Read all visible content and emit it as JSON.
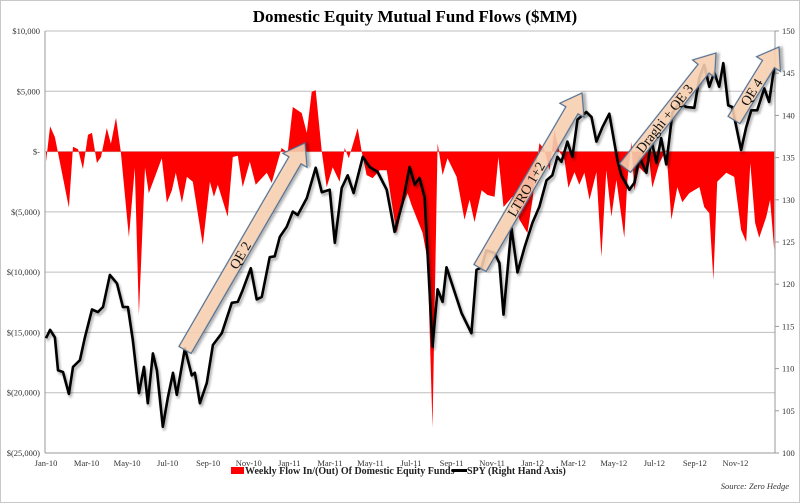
{
  "chart_data": {
    "type": "area+line",
    "title": "Domestic Equity Mutual Fund Flows ($MM)",
    "source": "Source: Zero Hedge",
    "x_unit": "months since Jan-10",
    "xlim": [
      0,
      36
    ],
    "x_ticks": [
      {
        "m": 0,
        "label": "Jan-10"
      },
      {
        "m": 2,
        "label": "Mar-10"
      },
      {
        "m": 4,
        "label": "May-10"
      },
      {
        "m": 6,
        "label": "Jul-10"
      },
      {
        "m": 8,
        "label": "Sep-10"
      },
      {
        "m": 10,
        "label": "Nov-10"
      },
      {
        "m": 12,
        "label": "Jan-11"
      },
      {
        "m": 14,
        "label": "Mar-11"
      },
      {
        "m": 16,
        "label": "May-11"
      },
      {
        "m": 18,
        "label": "Jul-11"
      },
      {
        "m": 20,
        "label": "Sep-11"
      },
      {
        "m": 22,
        "label": "Nov-11"
      },
      {
        "m": 24,
        "label": "Jan-12"
      },
      {
        "m": 26,
        "label": "Mar-12"
      },
      {
        "m": 28,
        "label": "May-12"
      },
      {
        "m": 30,
        "label": "Jul-12"
      },
      {
        "m": 32,
        "label": "Sep-12"
      },
      {
        "m": 34,
        "label": "Nov-12"
      }
    ],
    "left_axis": {
      "ylim": [
        -25000,
        10000
      ],
      "ticks": [
        {
          "v": 10000,
          "label": "$10,000"
        },
        {
          "v": 5000,
          "label": "$5,000"
        },
        {
          "v": 0,
          "label": "$-"
        },
        {
          "v": -5000,
          "label": "$(5,000)"
        },
        {
          "v": -10000,
          "label": "$(10,000)"
        },
        {
          "v": -15000,
          "label": "$(15,000)"
        },
        {
          "v": -20000,
          "label": "$(20,000)"
        },
        {
          "v": -25000,
          "label": "$(25,000)"
        }
      ],
      "grid": true
    },
    "right_axis": {
      "ylim": [
        100,
        150
      ],
      "ticks": [
        {
          "v": 100,
          "label": "100"
        },
        {
          "v": 105,
          "label": "105"
        },
        {
          "v": 110,
          "label": "110"
        },
        {
          "v": 115,
          "label": "115"
        },
        {
          "v": 120,
          "label": "120"
        },
        {
          "v": 125,
          "label": "125"
        },
        {
          "v": 130,
          "label": "130"
        },
        {
          "v": 135,
          "label": "135"
        },
        {
          "v": 140,
          "label": "140"
        },
        {
          "v": 145,
          "label": "145"
        },
        {
          "v": 150,
          "label": "150"
        }
      ]
    },
    "series": [
      {
        "name": "Weekly Flow In/(Out) Of Domestic Equity Funds",
        "type": "area",
        "axis": "left",
        "color": "#ff0000",
        "points": [
          [
            0.05,
            -850
          ],
          [
            0.25,
            2100
          ],
          [
            0.49,
            1200
          ],
          [
            1.18,
            -4650
          ],
          [
            1.38,
            400
          ],
          [
            1.63,
            200
          ],
          [
            1.87,
            -1450
          ],
          [
            2.12,
            1400
          ],
          [
            2.32,
            1550
          ],
          [
            2.56,
            -950
          ],
          [
            2.76,
            -450
          ],
          [
            3.05,
            1950
          ],
          [
            3.25,
            650
          ],
          [
            3.5,
            2800
          ],
          [
            3.74,
            0
          ],
          [
            4.14,
            -7100
          ],
          [
            4.43,
            -1350
          ],
          [
            4.63,
            -13550
          ],
          [
            4.93,
            -1350
          ],
          [
            5.12,
            -3450
          ],
          [
            5.42,
            -2100
          ],
          [
            5.76,
            -550
          ],
          [
            6.01,
            -4250
          ],
          [
            6.26,
            -3200
          ],
          [
            6.45,
            -1750
          ],
          [
            6.75,
            -4250
          ],
          [
            7.0,
            -2100
          ],
          [
            7.29,
            -2500
          ],
          [
            7.78,
            -7750
          ],
          [
            8.13,
            -2500
          ],
          [
            8.33,
            -3750
          ],
          [
            8.52,
            -2750
          ],
          [
            9.01,
            -5400
          ],
          [
            9.26,
            -450
          ],
          [
            9.51,
            -350
          ],
          [
            9.75,
            -2950
          ],
          [
            10.1,
            -850
          ],
          [
            10.39,
            -2750
          ],
          [
            10.94,
            -1750
          ],
          [
            11.18,
            -2600
          ],
          [
            11.67,
            300
          ],
          [
            11.97,
            -100
          ],
          [
            12.22,
            3700
          ],
          [
            12.66,
            3200
          ],
          [
            12.91,
            1550
          ],
          [
            13.15,
            4950
          ],
          [
            13.35,
            5100
          ],
          [
            13.65,
            0
          ],
          [
            13.89,
            -2950
          ],
          [
            14.19,
            -1300
          ],
          [
            14.53,
            -2500
          ],
          [
            14.78,
            300
          ],
          [
            14.98,
            -550
          ],
          [
            15.42,
            1950
          ],
          [
            15.62,
            0
          ],
          [
            15.86,
            -1950
          ],
          [
            16.16,
            -2200
          ],
          [
            16.5,
            -1550
          ],
          [
            16.85,
            -1550
          ],
          [
            17.34,
            -6750
          ],
          [
            17.64,
            -4450
          ],
          [
            17.88,
            -3450
          ],
          [
            18.08,
            -4450
          ],
          [
            18.62,
            -6750
          ],
          [
            18.87,
            -9000
          ],
          [
            19.11,
            -22900
          ],
          [
            19.36,
            700
          ],
          [
            19.61,
            -1950
          ],
          [
            19.85,
            -550
          ],
          [
            20.3,
            -2100
          ],
          [
            20.69,
            -5650
          ],
          [
            20.94,
            -4000
          ],
          [
            21.18,
            -5850
          ],
          [
            21.53,
            -3200
          ],
          [
            21.82,
            -3600
          ],
          [
            22.17,
            -3750
          ],
          [
            22.36,
            -450
          ],
          [
            22.61,
            -4600
          ],
          [
            23.05,
            -3750
          ],
          [
            23.4,
            -5650
          ],
          [
            23.79,
            -6750
          ],
          [
            24.04,
            -4000
          ],
          [
            24.38,
            700
          ],
          [
            24.63,
            150
          ],
          [
            24.88,
            -1550
          ],
          [
            25.12,
            1800
          ],
          [
            25.37,
            0
          ],
          [
            25.62,
            -700
          ],
          [
            25.81,
            -3000
          ],
          [
            26.11,
            -1700
          ],
          [
            26.35,
            -2750
          ],
          [
            26.6,
            -1750
          ],
          [
            26.85,
            -4000
          ],
          [
            27.19,
            -1700
          ],
          [
            27.44,
            -8750
          ],
          [
            27.68,
            -1550
          ],
          [
            27.93,
            -5400
          ],
          [
            28.18,
            -2350
          ],
          [
            28.57,
            -7150
          ],
          [
            28.72,
            -2350
          ],
          [
            28.92,
            800
          ],
          [
            29.06,
            -3200
          ],
          [
            29.31,
            -1300
          ],
          [
            29.56,
            -1750
          ],
          [
            29.8,
            -700
          ],
          [
            29.95,
            -3000
          ],
          [
            30.3,
            -950
          ],
          [
            30.64,
            150
          ],
          [
            30.89,
            -5650
          ],
          [
            31.18,
            -2950
          ],
          [
            31.43,
            -4200
          ],
          [
            31.77,
            -3450
          ],
          [
            32.27,
            -2950
          ],
          [
            32.51,
            -4600
          ],
          [
            32.76,
            -5100
          ],
          [
            32.96,
            -10650
          ],
          [
            33.15,
            -2500
          ],
          [
            33.6,
            -1750
          ],
          [
            33.99,
            -2100
          ],
          [
            34.33,
            -6500
          ],
          [
            34.58,
            -7500
          ],
          [
            34.78,
            -950
          ],
          [
            35.02,
            -5900
          ],
          [
            35.22,
            -7150
          ],
          [
            35.57,
            -5400
          ],
          [
            35.76,
            -4000
          ],
          [
            35.96,
            -8150
          ]
        ]
      },
      {
        "name": "SPY (Right Hand Axis)",
        "type": "line",
        "axis": "right",
        "color": "#000000",
        "points": [
          [
            0.05,
            113.6
          ],
          [
            0.25,
            114.6
          ],
          [
            0.49,
            113.7
          ],
          [
            0.64,
            109.8
          ],
          [
            0.89,
            109.6
          ],
          [
            1.18,
            107.0
          ],
          [
            1.38,
            110.2
          ],
          [
            1.72,
            111.0
          ],
          [
            1.97,
            113.7
          ],
          [
            2.32,
            117.0
          ],
          [
            2.61,
            116.7
          ],
          [
            2.86,
            117.3
          ],
          [
            3.2,
            121.1
          ],
          [
            3.55,
            120.1
          ],
          [
            3.84,
            117.3
          ],
          [
            4.09,
            117.3
          ],
          [
            4.33,
            113.4
          ],
          [
            4.63,
            107.1
          ],
          [
            4.88,
            110.2
          ],
          [
            5.07,
            105.9
          ],
          [
            5.32,
            111.8
          ],
          [
            5.52,
            109.8
          ],
          [
            5.81,
            103.1
          ],
          [
            6.06,
            106.6
          ],
          [
            6.31,
            109.5
          ],
          [
            6.5,
            106.9
          ],
          [
            6.9,
            112.4
          ],
          [
            7.24,
            109.2
          ],
          [
            7.39,
            109.5
          ],
          [
            7.64,
            105.9
          ],
          [
            7.98,
            108.3
          ],
          [
            8.28,
            112.8
          ],
          [
            8.72,
            114.2
          ],
          [
            9.21,
            117.8
          ],
          [
            9.51,
            117.9
          ],
          [
            9.75,
            119.3
          ],
          [
            10.15,
            121.9
          ],
          [
            10.44,
            118.2
          ],
          [
            10.69,
            118.5
          ],
          [
            11.08,
            123.2
          ],
          [
            11.33,
            123.3
          ],
          [
            11.58,
            125.6
          ],
          [
            11.92,
            126.8
          ],
          [
            12.22,
            128.6
          ],
          [
            12.46,
            128.2
          ],
          [
            12.91,
            130.2
          ],
          [
            13.35,
            133.8
          ],
          [
            13.65,
            130.9
          ],
          [
            14.04,
            131.2
          ],
          [
            14.29,
            124.9
          ],
          [
            14.63,
            131.4
          ],
          [
            14.93,
            132.9
          ],
          [
            15.22,
            130.8
          ],
          [
            15.67,
            135.1
          ],
          [
            16.01,
            133.9
          ],
          [
            16.4,
            133.3
          ],
          [
            16.85,
            131.2
          ],
          [
            17.24,
            126.2
          ],
          [
            17.64,
            129.7
          ],
          [
            17.98,
            133.9
          ],
          [
            18.23,
            131.8
          ],
          [
            18.47,
            132.6
          ],
          [
            18.72,
            130.3
          ],
          [
            19.11,
            112.6
          ],
          [
            19.36,
            119.4
          ],
          [
            19.61,
            117.9
          ],
          [
            19.8,
            122.0
          ],
          [
            20.54,
            116.6
          ],
          [
            21.03,
            114.2
          ],
          [
            21.28,
            121.7
          ],
          [
            21.53,
            122.0
          ],
          [
            21.77,
            124.0
          ],
          [
            22.17,
            123.7
          ],
          [
            22.41,
            122.5
          ],
          [
            22.61,
            116.4
          ],
          [
            23.0,
            126.7
          ],
          [
            23.3,
            121.4
          ],
          [
            23.65,
            124.4
          ],
          [
            24.04,
            127.3
          ],
          [
            24.38,
            129.2
          ],
          [
            24.73,
            132.3
          ],
          [
            25.02,
            132.9
          ],
          [
            25.27,
            135.1
          ],
          [
            25.47,
            134.5
          ],
          [
            25.76,
            136.9
          ],
          [
            26.01,
            135.1
          ],
          [
            26.26,
            139.5
          ],
          [
            26.7,
            140.4
          ],
          [
            26.95,
            139.8
          ],
          [
            27.19,
            136.9
          ],
          [
            27.49,
            138.6
          ],
          [
            27.83,
            140.2
          ],
          [
            28.23,
            134.7
          ],
          [
            28.42,
            132.9
          ],
          [
            28.82,
            131.2
          ],
          [
            29.06,
            132.0
          ],
          [
            29.31,
            135.1
          ],
          [
            29.66,
            133.2
          ],
          [
            29.9,
            137.1
          ],
          [
            30.15,
            134.4
          ],
          [
            30.39,
            137.3
          ],
          [
            30.64,
            134.2
          ],
          [
            30.94,
            140.3
          ],
          [
            31.28,
            141.5
          ],
          [
            31.63,
            141.0
          ],
          [
            32.02,
            140.9
          ],
          [
            32.27,
            144.5
          ],
          [
            32.51,
            146.0
          ],
          [
            32.76,
            143.4
          ],
          [
            33.0,
            145.1
          ],
          [
            33.25,
            143.4
          ],
          [
            33.45,
            146.2
          ],
          [
            33.69,
            141.2
          ],
          [
            33.89,
            141.0
          ],
          [
            34.33,
            135.9
          ],
          [
            34.58,
            138.6
          ],
          [
            34.83,
            140.6
          ],
          [
            35.12,
            140.6
          ],
          [
            35.47,
            143.2
          ],
          [
            35.71,
            141.6
          ],
          [
            35.96,
            145.7
          ]
        ]
      }
    ],
    "legend": {
      "position": "bottom-center",
      "entries": [
        "Weekly Flow In/(Out) Of Domestic Equity Funds",
        "SPY (Right Hand Axis)"
      ]
    },
    "annotations": [
      {
        "id": "qe2",
        "label": "QE 2"
      },
      {
        "id": "ltro",
        "label": "LTRO 1+2"
      },
      {
        "id": "draghi",
        "label": "Draghi + QE 3"
      },
      {
        "id": "qe4",
        "label": "QE 4"
      }
    ]
  }
}
